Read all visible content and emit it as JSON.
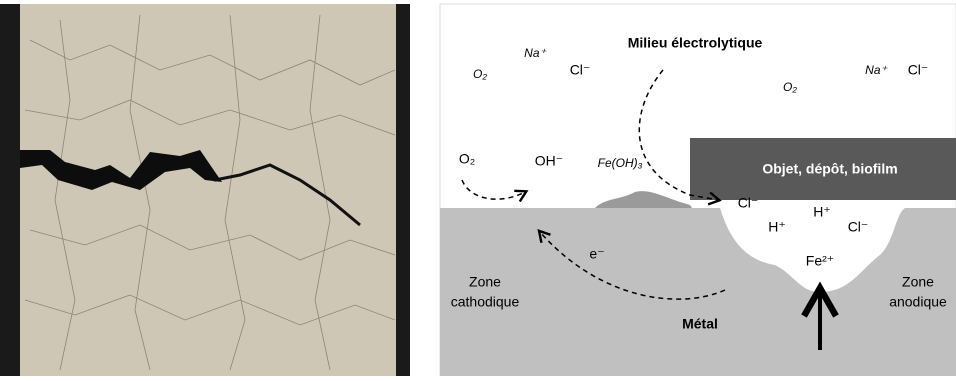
{
  "diagram": {
    "title": "Milieu électrolytique",
    "object": "Objet, dépôt, biofilm",
    "metal": "Métal",
    "cathode": [
      "Zone",
      "cathodique"
    ],
    "anode": [
      "Zone",
      "anodique"
    ],
    "species": {
      "o2_a": "O₂",
      "na_a": "Na⁺",
      "cl_a": "Cl⁻",
      "o2_b": "O₂",
      "na_b": "Na⁺",
      "cl_b": "Cl⁻",
      "o2_c": "O₂",
      "oh": "OH⁻",
      "feoh3": "Fe(OH)₃",
      "cl_c": "Cl⁻",
      "h_a": "H⁺",
      "h_b": "H⁺",
      "cl_d": "Cl⁻",
      "fe2": "Fe²⁺",
      "e": "e⁻"
    }
  }
}
